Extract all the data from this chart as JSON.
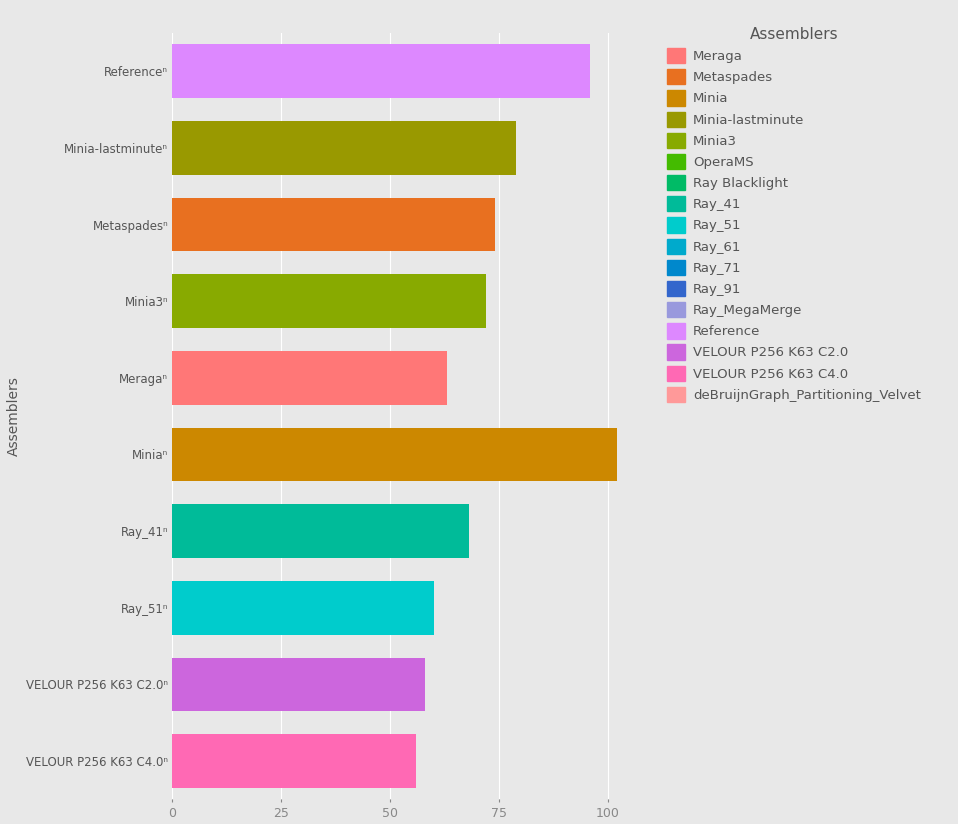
{
  "title": "Assemblers",
  "ylabel": "Assemblers",
  "background_color": "#E8E8E8",
  "plot_bg_color": "#E8E8E8",
  "categories": [
    "VELOUR P256 K63 C4.0",
    "VELOUR P256 K63 C2.0",
    "Ray_51",
    "Ray_41",
    "Minia",
    "Meraga",
    "Minia3",
    "Metaspades",
    "Minia-lastminute",
    "Reference"
  ],
  "values": [
    56,
    58,
    60,
    68,
    102,
    63,
    72,
    74,
    79,
    96
  ],
  "colors": [
    "#FF69B4",
    "#CC66DD",
    "#00CCCC",
    "#00BB99",
    "#CC8800",
    "#FF7777",
    "#88AA00",
    "#E87020",
    "#999900",
    "#DD88FF"
  ],
  "legend_entries": [
    {
      "label": "Meraga",
      "color": "#FF7777"
    },
    {
      "label": "Metaspades",
      "color": "#E87020"
    },
    {
      "label": "Minia",
      "color": "#CC8800"
    },
    {
      "label": "Minia-lastminute",
      "color": "#999900"
    },
    {
      "label": "Minia3",
      "color": "#88AA00"
    },
    {
      "label": "OperaMS",
      "color": "#44BB00"
    },
    {
      "label": "Ray Blacklight",
      "color": "#00BB66"
    },
    {
      "label": "Ray_41",
      "color": "#00BB99"
    },
    {
      "label": "Ray_51",
      "color": "#00CCCC"
    },
    {
      "label": "Ray_61",
      "color": "#00AACC"
    },
    {
      "label": "Ray_71",
      "color": "#0088CC"
    },
    {
      "label": "Ray_91",
      "color": "#3366CC"
    },
    {
      "label": "Ray_MegaMerge",
      "color": "#9999DD"
    },
    {
      "label": "Reference",
      "color": "#DD88FF"
    },
    {
      "label": "VELOUR P256 K63 C2.0",
      "color": "#CC66DD"
    },
    {
      "label": "VELOUR P256 K63 C4.0",
      "color": "#FF69B4"
    },
    {
      "label": "deBruijnGraph_Partitioning_Velvet",
      "color": "#FF9999"
    }
  ],
  "xlim": [
    0,
    110
  ],
  "grid_color": "#FFFFFF",
  "bar_height": 0.7,
  "tick_fontsize": 9,
  "ytick_fontsize": 8.5,
  "legend_fontsize": 9.5,
  "title_fontsize": 11,
  "ylabel_fontsize": 10
}
